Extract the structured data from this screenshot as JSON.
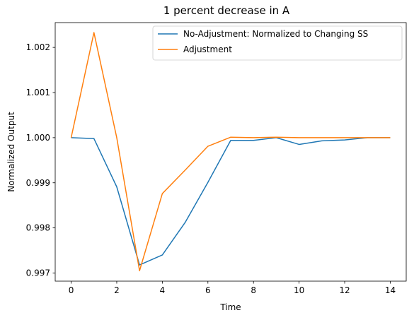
{
  "chart_data": {
    "type": "line",
    "title": "1 percent decrease in A",
    "xlabel": "Time",
    "ylabel": "Normalized Output",
    "xlim": [
      -0.7,
      14.7
    ],
    "ylim": [
      0.99682,
      1.00255
    ],
    "xticks": [
      0,
      2,
      4,
      6,
      8,
      10,
      12,
      14
    ],
    "xtick_labels": [
      "0",
      "2",
      "4",
      "6",
      "8",
      "10",
      "12",
      "14"
    ],
    "yticks": [
      0.997,
      0.998,
      0.999,
      1.0,
      1.001,
      1.002
    ],
    "ytick_labels": [
      "0.997",
      "0.998",
      "0.999",
      "1.000",
      "1.001",
      "1.002"
    ],
    "grid": false,
    "legend_position": "upper right",
    "x": [
      0,
      1,
      2,
      3,
      4,
      5,
      6,
      7,
      8,
      9,
      10,
      11,
      12,
      13,
      14
    ],
    "series": [
      {
        "name": "No-Adjustment: Normalized to Changing SS",
        "color": "#1f77b4",
        "values": [
          1.0,
          0.99998,
          0.99891,
          0.99718,
          0.9974,
          0.99812,
          0.99901,
          0.99994,
          0.99994,
          1.0,
          0.99985,
          0.99993,
          0.99995,
          1.0,
          1.0
        ]
      },
      {
        "name": "Adjustment",
        "color": "#ff7f0e",
        "values": [
          1.0,
          1.00233,
          1.0,
          0.99705,
          0.99876,
          0.99928,
          0.99981,
          1.00001,
          1.0,
          1.00001,
          1.0,
          1.0,
          1.0,
          1.0,
          1.0
        ]
      }
    ]
  }
}
